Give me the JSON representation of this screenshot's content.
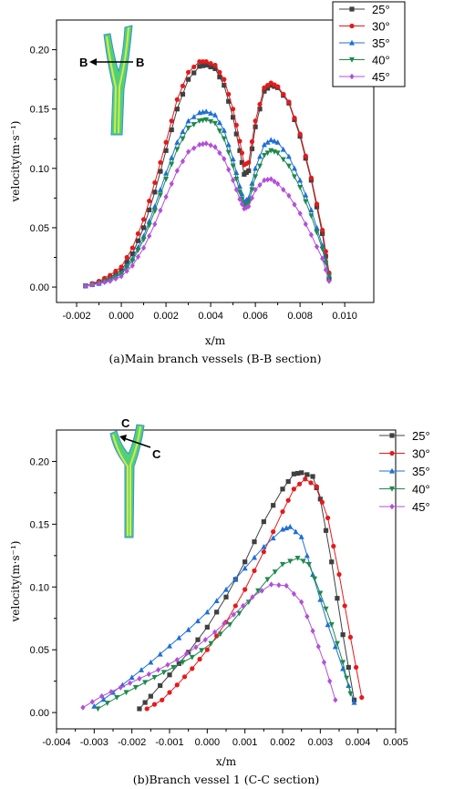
{
  "chart_data": [
    {
      "type": "line",
      "caption": "(a)Main branch vessels (B-B section)",
      "xlabel": "x/m",
      "ylabel": "velocity(m·s⁻¹)",
      "xlim": [
        -0.0029,
        0.0113
      ],
      "ylim": [
        -0.013,
        0.225
      ],
      "xticks": [
        "-0.002",
        "0.000",
        "0.002",
        "0.004",
        "0.006",
        "0.008",
        "0.010"
      ],
      "xtick_values": [
        -0.002,
        0.0,
        0.002,
        0.004,
        0.006,
        0.008,
        0.01
      ],
      "yticks": [
        "0.00",
        "0.05",
        "0.10",
        "0.15",
        "0.20"
      ],
      "ytick_values": [
        0.0,
        0.05,
        0.1,
        0.15,
        0.2
      ],
      "legend_position": "top-right",
      "section_label": "B",
      "series": [
        {
          "name": "25°",
          "color": "#404040",
          "marker": "square",
          "x": [
            -0.0016,
            -0.001,
            -0.0005,
            0.0,
            0.0005,
            0.001,
            0.0015,
            0.002,
            0.0025,
            0.003,
            0.0035,
            0.0038,
            0.0042,
            0.0046,
            0.005,
            0.0053,
            0.0055,
            0.0057,
            0.006,
            0.0064,
            0.0067,
            0.007,
            0.0075,
            0.008,
            0.0085,
            0.009,
            0.0093
          ],
          "y": [
            0.001,
            0.004,
            0.008,
            0.014,
            0.028,
            0.05,
            0.08,
            0.115,
            0.15,
            0.175,
            0.186,
            0.187,
            0.184,
            0.17,
            0.143,
            0.115,
            0.095,
            0.098,
            0.135,
            0.165,
            0.17,
            0.168,
            0.155,
            0.127,
            0.09,
            0.045,
            0.007
          ]
        },
        {
          "name": "30°",
          "color": "#e41a1c",
          "marker": "circle",
          "x": [
            -0.0016,
            -0.001,
            -0.0005,
            0.0,
            0.0005,
            0.001,
            0.0015,
            0.002,
            0.0025,
            0.003,
            0.0035,
            0.0038,
            0.0042,
            0.0046,
            0.005,
            0.0053,
            0.0055,
            0.0057,
            0.006,
            0.0064,
            0.0067,
            0.007,
            0.0075,
            0.008,
            0.0085,
            0.009,
            0.0093
          ],
          "y": [
            0.001,
            0.005,
            0.01,
            0.017,
            0.033,
            0.057,
            0.088,
            0.122,
            0.158,
            0.181,
            0.19,
            0.19,
            0.187,
            0.175,
            0.15,
            0.123,
            0.103,
            0.105,
            0.14,
            0.168,
            0.172,
            0.169,
            0.156,
            0.129,
            0.092,
            0.048,
            0.012
          ]
        },
        {
          "name": "35°",
          "color": "#1f6fd6",
          "marker": "triangle-up",
          "x": [
            -0.0016,
            -0.001,
            -0.0005,
            0.0,
            0.0005,
            0.001,
            0.0015,
            0.002,
            0.0025,
            0.003,
            0.0035,
            0.0038,
            0.0042,
            0.0046,
            0.005,
            0.0053,
            0.0055,
            0.0057,
            0.006,
            0.0064,
            0.0067,
            0.007,
            0.0075,
            0.008,
            0.0085,
            0.009,
            0.0093
          ],
          "y": [
            0.001,
            0.003,
            0.007,
            0.012,
            0.024,
            0.043,
            0.068,
            0.096,
            0.122,
            0.14,
            0.147,
            0.148,
            0.145,
            0.132,
            0.108,
            0.085,
            0.072,
            0.075,
            0.1,
            0.12,
            0.124,
            0.122,
            0.11,
            0.09,
            0.065,
            0.035,
            0.01
          ]
        },
        {
          "name": "40°",
          "color": "#1e8a4c",
          "marker": "triangle-down",
          "x": [
            -0.0016,
            -0.001,
            -0.0005,
            0.0,
            0.0005,
            0.001,
            0.0015,
            0.002,
            0.0025,
            0.003,
            0.0035,
            0.0038,
            0.0042,
            0.0046,
            0.005,
            0.0053,
            0.0055,
            0.0057,
            0.006,
            0.0064,
            0.0067,
            0.007,
            0.0075,
            0.008,
            0.0085,
            0.009,
            0.0093
          ],
          "y": [
            0.001,
            0.003,
            0.006,
            0.011,
            0.022,
            0.04,
            0.064,
            0.091,
            0.116,
            0.134,
            0.14,
            0.141,
            0.138,
            0.125,
            0.102,
            0.08,
            0.068,
            0.071,
            0.093,
            0.111,
            0.115,
            0.113,
            0.102,
            0.084,
            0.06,
            0.032,
            0.009
          ]
        },
        {
          "name": "45°",
          "color": "#b24fd8",
          "marker": "diamond",
          "x": [
            -0.0016,
            -0.001,
            -0.0005,
            0.0,
            0.0005,
            0.001,
            0.0015,
            0.002,
            0.0025,
            0.003,
            0.0035,
            0.0038,
            0.0042,
            0.0046,
            0.005,
            0.0053,
            0.0055,
            0.0057,
            0.006,
            0.0064,
            0.0067,
            0.007,
            0.0075,
            0.008,
            0.0085,
            0.009,
            0.0093
          ],
          "y": [
            0.001,
            0.003,
            0.005,
            0.009,
            0.018,
            0.033,
            0.053,
            0.076,
            0.098,
            0.114,
            0.12,
            0.121,
            0.118,
            0.108,
            0.09,
            0.074,
            0.066,
            0.068,
            0.082,
            0.09,
            0.091,
            0.087,
            0.077,
            0.062,
            0.044,
            0.024,
            0.005
          ]
        }
      ]
    },
    {
      "type": "line",
      "caption": "(b)Branch vessel 1 (C-C section)",
      "xlabel": "x/m",
      "ylabel": "velocity(m·s⁻¹)",
      "xlim": [
        -0.004,
        0.005
      ],
      "ylim": [
        -0.013,
        0.225
      ],
      "xticks": [
        "-0.004",
        "-0.003",
        "-0.002",
        "-0.001",
        "0.000",
        "0.001",
        "0.002",
        "0.003",
        "0.004",
        "0.005"
      ],
      "xtick_values": [
        -0.004,
        -0.003,
        -0.002,
        -0.001,
        0.0,
        0.001,
        0.002,
        0.003,
        0.004,
        0.005
      ],
      "yticks": [
        "0.00",
        "0.05",
        "0.10",
        "0.15",
        "0.20"
      ],
      "ytick_values": [
        0.0,
        0.05,
        0.1,
        0.15,
        0.2
      ],
      "legend_position": "top-right",
      "section_label": "C",
      "series": [
        {
          "name": "25°",
          "color": "#404040",
          "marker": "square",
          "x": [
            -0.0018,
            -0.0015,
            -0.001,
            -0.0005,
            0.0,
            0.0005,
            0.001,
            0.0015,
            0.002,
            0.0023,
            0.0025,
            0.0028,
            0.003,
            0.0033,
            0.0036,
            0.0039
          ],
          "y": [
            0.003,
            0.013,
            0.03,
            0.048,
            0.068,
            0.092,
            0.12,
            0.152,
            0.178,
            0.19,
            0.191,
            0.188,
            0.17,
            0.12,
            0.062,
            0.01
          ]
        },
        {
          "name": "30°",
          "color": "#e41a1c",
          "marker": "circle",
          "x": [
            -0.0016,
            -0.0012,
            -0.0008,
            -0.0004,
            0.0,
            0.0005,
            0.001,
            0.0015,
            0.002,
            0.0023,
            0.0026,
            0.0029,
            0.0032,
            0.0035,
            0.0038,
            0.0041
          ],
          "y": [
            0.003,
            0.01,
            0.022,
            0.035,
            0.05,
            0.072,
            0.098,
            0.128,
            0.16,
            0.178,
            0.186,
            0.18,
            0.155,
            0.11,
            0.06,
            0.012
          ]
        },
        {
          "name": "35°",
          "color": "#1f6fd6",
          "marker": "triangle-up",
          "x": [
            -0.003,
            -0.0025,
            -0.002,
            -0.0015,
            -0.001,
            -0.0005,
            0.0,
            0.0005,
            0.001,
            0.0015,
            0.002,
            0.0022,
            0.0025,
            0.0028,
            0.0032,
            0.0036,
            0.0039
          ],
          "y": [
            0.005,
            0.016,
            0.028,
            0.04,
            0.053,
            0.066,
            0.08,
            0.098,
            0.115,
            0.132,
            0.146,
            0.148,
            0.14,
            0.11,
            0.07,
            0.035,
            0.008
          ]
        },
        {
          "name": "40°",
          "color": "#1e8a4c",
          "marker": "triangle-down",
          "x": [
            -0.0029,
            -0.0024,
            -0.0019,
            -0.0014,
            -0.0009,
            -0.0004,
            0.0001,
            0.0006,
            0.0011,
            0.0016,
            0.002,
            0.0024,
            0.0027,
            0.003,
            0.0033,
            0.0036,
            0.0038
          ],
          "y": [
            0.003,
            0.012,
            0.02,
            0.028,
            0.036,
            0.044,
            0.055,
            0.07,
            0.088,
            0.106,
            0.118,
            0.123,
            0.118,
            0.095,
            0.07,
            0.04,
            0.015
          ]
        },
        {
          "name": "45°",
          "color": "#b24fd8",
          "marker": "diamond",
          "x": [
            -0.0033,
            -0.0028,
            -0.0023,
            -0.0018,
            -0.0013,
            -0.0008,
            -0.0003,
            0.0002,
            0.0007,
            0.0012,
            0.0017,
            0.0021,
            0.0025,
            0.0028,
            0.0031,
            0.0034
          ],
          "y": [
            0.004,
            0.013,
            0.02,
            0.027,
            0.034,
            0.042,
            0.052,
            0.064,
            0.078,
            0.092,
            0.102,
            0.101,
            0.088,
            0.065,
            0.04,
            0.01
          ]
        }
      ]
    }
  ]
}
